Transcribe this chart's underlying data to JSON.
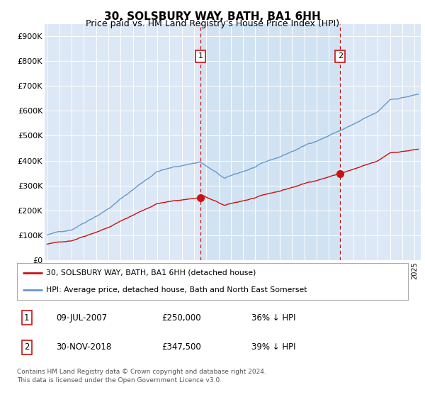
{
  "title": "30, SOLSBURY WAY, BATH, BA1 6HH",
  "subtitle": "Price paid vs. HM Land Registry's House Price Index (HPI)",
  "ylabel_ticks": [
    "£0",
    "£100K",
    "£200K",
    "£300K",
    "£400K",
    "£500K",
    "£600K",
    "£700K",
    "£800K",
    "£900K"
  ],
  "ytick_values": [
    0,
    100000,
    200000,
    300000,
    400000,
    500000,
    600000,
    700000,
    800000,
    900000
  ],
  "ylim": [
    0,
    950000
  ],
  "xlim_start": 1994.8,
  "xlim_end": 2025.5,
  "background_color": "#dce8f5",
  "hpi_color": "#6699cc",
  "price_color": "#cc1111",
  "vline_color": "#cc1111",
  "transaction1_x": 2007.53,
  "transaction1_y": 250000,
  "transaction1_label": "1",
  "transaction2_x": 2018.92,
  "transaction2_y": 347500,
  "transaction2_label": "2",
  "legend_line1": "30, SOLSBURY WAY, BATH, BA1 6HH (detached house)",
  "legend_line2": "HPI: Average price, detached house, Bath and North East Somerset",
  "table_row1": [
    "1",
    "09-JUL-2007",
    "£250,000",
    "36% ↓ HPI"
  ],
  "table_row2": [
    "2",
    "30-NOV-2018",
    "£347,500",
    "39% ↓ HPI"
  ],
  "footer": "Contains HM Land Registry data © Crown copyright and database right 2024.\nThis data is licensed under the Open Government Licence v3.0.",
  "title_fontsize": 11,
  "subtitle_fontsize": 9,
  "tick_fontsize": 8
}
